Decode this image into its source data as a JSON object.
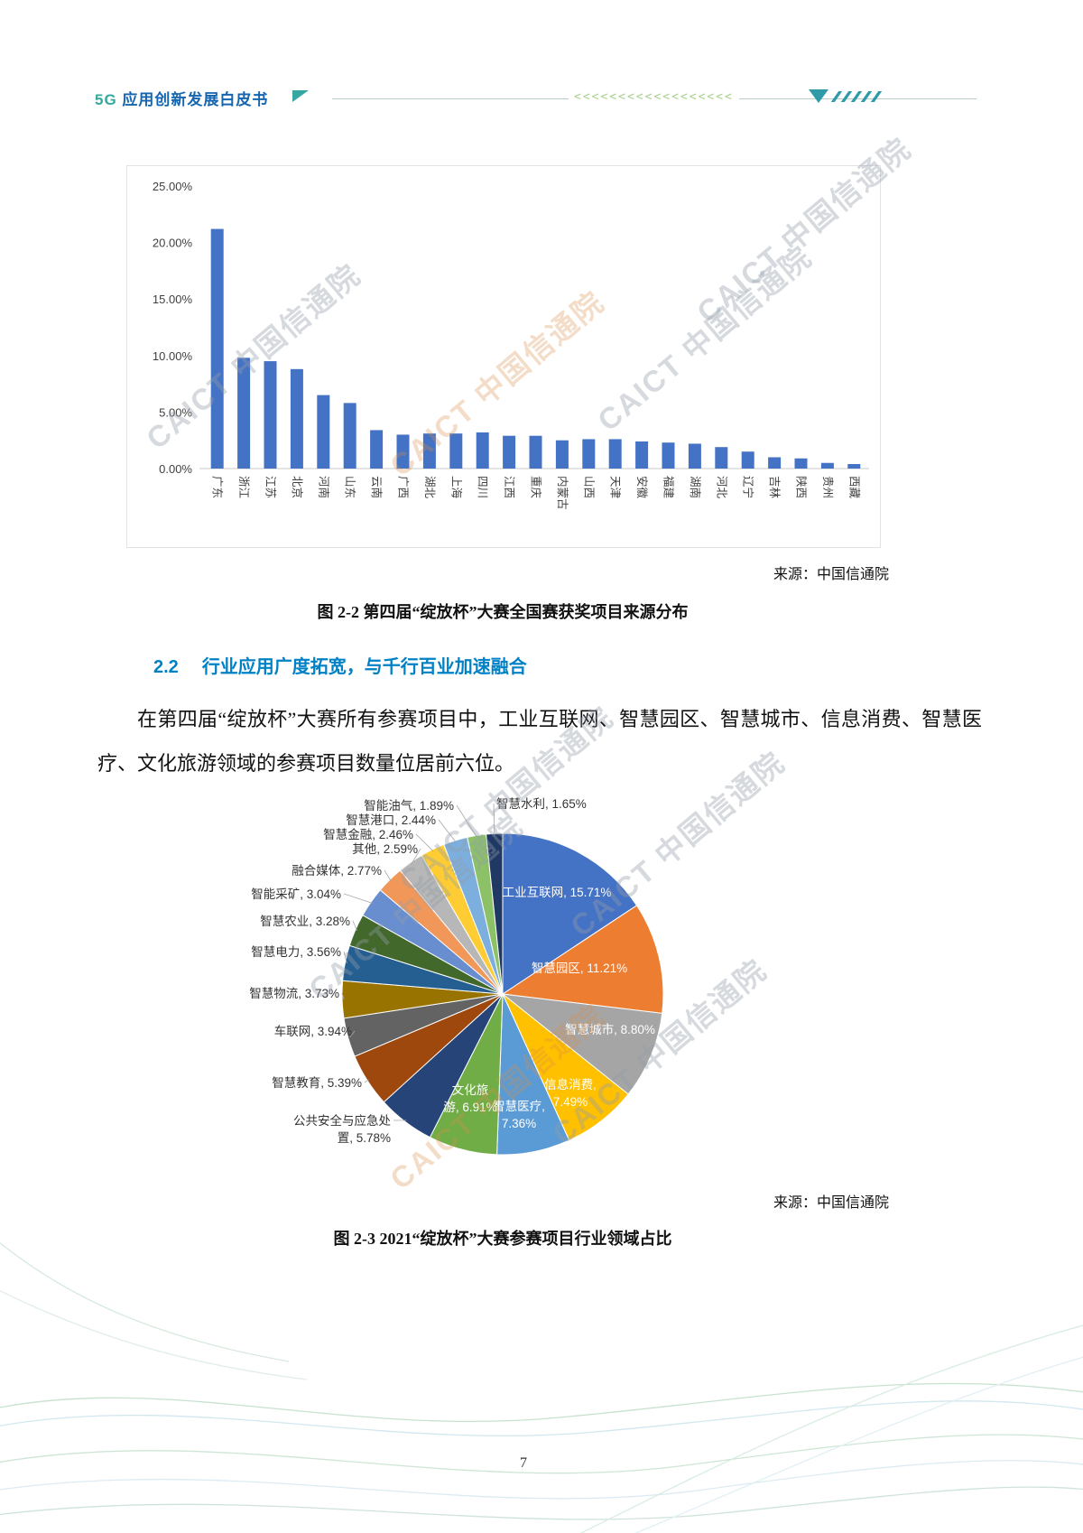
{
  "header": {
    "title_5g": "5G",
    "title_rest": " 应用创新发展白皮书",
    "chevrons": "<<<<<<<<<<<<<<<<<<"
  },
  "watermark": {
    "text": "CAICT 中国信通院"
  },
  "figure_2_2": {
    "source": "来源：中国信通院",
    "caption": "图 2-2 第四届“绽放杯”大赛全国赛获奖项目来源分布"
  },
  "section_2_2": {
    "number": "2.2",
    "title": "行业应用广度拓宽，与千行百业加速融合"
  },
  "body_paragraph": "在第四届“绽放杯”大赛所有参赛项目中，工业互联网、智慧园区、智慧城市、信息消费、智慧医疗、文化旅游领域的参赛项目数量位居前六位。",
  "figure_2_3": {
    "source": "来源：中国信通院",
    "caption": "图 2-3 2021“绽放杯”大赛参赛项目行业领域占比"
  },
  "footer": {
    "page_number": "7"
  },
  "chart_data": [
    {
      "type": "bar",
      "title": "第四届“绽放杯”大赛全国赛获奖项目来源分布",
      "categories": [
        "广东",
        "浙江",
        "江苏",
        "北京",
        "河南",
        "山东",
        "云南",
        "广西",
        "湖北",
        "上海",
        "四川",
        "江西",
        "重庆",
        "内蒙古",
        "山西",
        "天津",
        "安徽",
        "福建",
        "湖南",
        "河北",
        "辽宁",
        "吉林",
        "陕西",
        "贵州",
        "西藏"
      ],
      "values": [
        21.2,
        9.8,
        9.5,
        8.8,
        6.5,
        5.8,
        3.4,
        3.0,
        3.1,
        3.1,
        3.2,
        2.9,
        2.9,
        2.5,
        2.6,
        2.6,
        2.4,
        2.3,
        2.2,
        1.9,
        1.5,
        1.0,
        0.9,
        0.5,
        0.4
      ],
      "xlabel": "",
      "ylabel": "",
      "ylim": [
        0,
        25
      ],
      "yticks": [
        "25.00%",
        "20.00%",
        "15.00%",
        "10.00%",
        "5.00%",
        "0.00%"
      ],
      "bar_color": "#4472C4",
      "grid": false,
      "legend": false
    },
    {
      "type": "pie",
      "title": "2021“绽放杯”大赛参赛项目行业领域占比",
      "labels": [
        "工业互联网",
        "智慧园区",
        "智慧城市",
        "信息消费",
        "智慧医疗",
        "文化旅游",
        "公共安全与应急处置",
        "智慧教育",
        "车联网",
        "智慧物流",
        "智慧电力",
        "智慧农业",
        "智能采矿",
        "融合媒体",
        "其他",
        "智慧金融",
        "智慧港口",
        "智能油气",
        "智慧水利"
      ],
      "values": [
        15.71,
        11.21,
        8.8,
        7.49,
        7.36,
        6.91,
        5.78,
        5.39,
        3.94,
        3.73,
        3.56,
        3.28,
        3.04,
        2.77,
        2.59,
        2.46,
        2.44,
        1.89,
        1.65
      ],
      "colors": [
        "#4472C4",
        "#ED7D31",
        "#A5A5A5",
        "#FFC000",
        "#5B9BD5",
        "#70AD47",
        "#264478",
        "#9E480E",
        "#636363",
        "#997300",
        "#255E91",
        "#43682B",
        "#698ED0",
        "#F1975A",
        "#B7B7B7",
        "#FFCD33",
        "#7CAFDD",
        "#8CC168",
        "#1F3864"
      ],
      "legend": false
    }
  ]
}
